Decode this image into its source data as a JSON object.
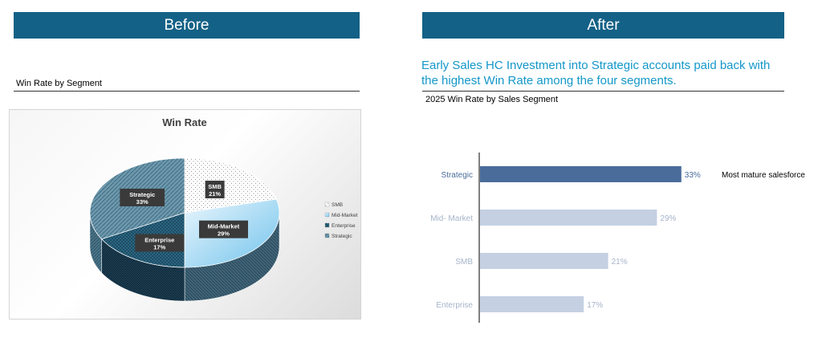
{
  "before": {
    "banner": "Before",
    "subtitle": "Win Rate by Segment"
  },
  "after": {
    "banner": "After",
    "headline_line1": "Early Sales HC Investment into Strategic accounts paid back with",
    "headline_line2": "the highest Win Rate among the four segments.",
    "subtitle": "2025 Win Rate by Sales Segment"
  },
  "colors": {
    "banner": "#136186",
    "headline": "#1497c9",
    "bar_highlight": "#4a6c9b",
    "bar_muted": "#c5d0e3",
    "label_muted": "#a6b4ca"
  },
  "chart_data": [
    {
      "type": "pie",
      "title": "Win Rate",
      "categories": [
        "SMB",
        "Mid-Market",
        "Enterprise",
        "Strategic"
      ],
      "values": [
        21,
        29,
        17,
        33
      ],
      "data_labels": [
        "21%",
        "29%",
        "17%",
        "33%"
      ],
      "legend": [
        "SMB",
        "Mid-Market",
        "Enterprise",
        "Strategic"
      ],
      "legend_placement": "right",
      "style": "3d"
    },
    {
      "type": "bar",
      "orientation": "horizontal",
      "categories": [
        "Strategic",
        "Mid- Market",
        "SMB",
        "Enterprise"
      ],
      "values": [
        33,
        29,
        21,
        17
      ],
      "data_labels": [
        "33%",
        "29%",
        "21%",
        "17%"
      ],
      "highlight": "Strategic",
      "annotation": "Most mature salesforce",
      "xlim": [
        0,
        40
      ],
      "grid": false
    }
  ]
}
